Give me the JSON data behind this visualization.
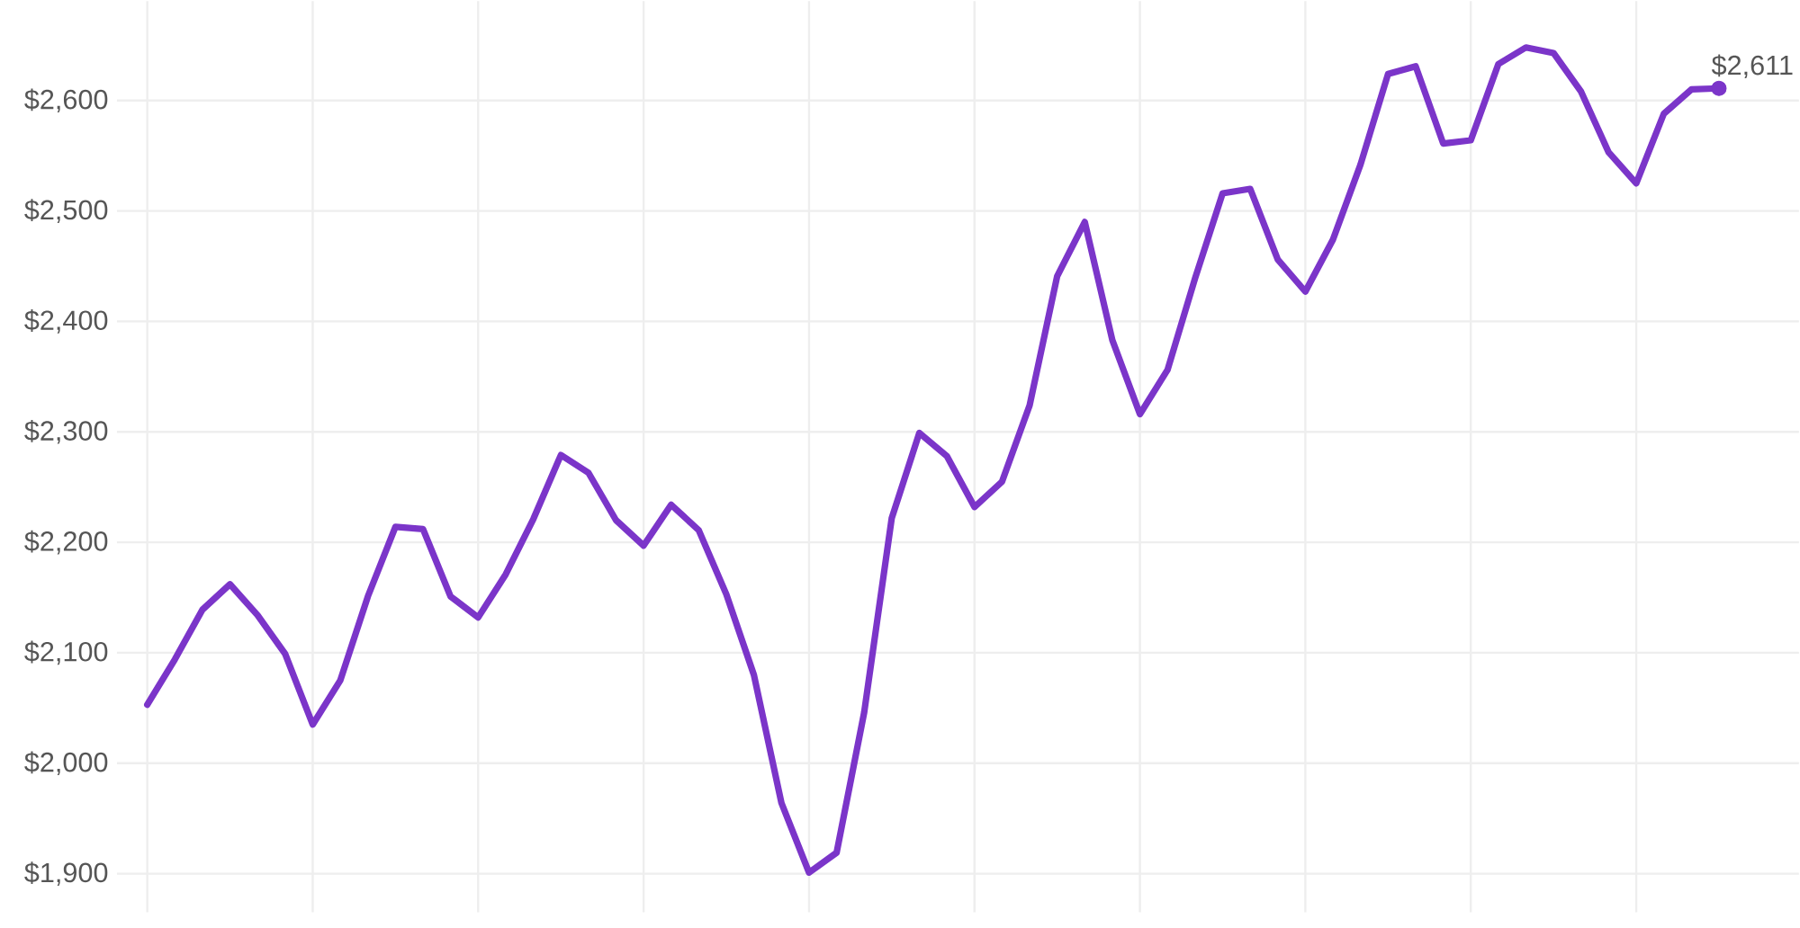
{
  "chart_data": {
    "type": "line",
    "categories": [
      null,
      null,
      null,
      null,
      null,
      null,
      null,
      null,
      null,
      null,
      null,
      null,
      null,
      null,
      null,
      null,
      null,
      null,
      null,
      null,
      null,
      null,
      null,
      null,
      null,
      null,
      null,
      null,
      null,
      null,
      null,
      null,
      null,
      null,
      null,
      null,
      null,
      null,
      null,
      null,
      null,
      null,
      null,
      null,
      null,
      null,
      null,
      null,
      null,
      null,
      null,
      null,
      null,
      null,
      null,
      null,
      null,
      null
    ],
    "series": [
      {
        "color": "#7b35c9",
        "values": [
          2053,
          2094,
          2139,
          2162,
          2134,
          2099,
          2035,
          2075,
          2151,
          2214,
          2212,
          2151,
          2132,
          2171,
          2221,
          2279,
          2263,
          2220,
          2197,
          2234,
          2211,
          2153,
          2080,
          1964,
          1901,
          1919,
          2046,
          2222,
          2299,
          2278,
          2232,
          2255,
          2324,
          2441,
          2490,
          2383,
          2316,
          2356,
          2439,
          2516,
          2520,
          2456,
          2427,
          2474,
          2542,
          2624,
          2631,
          2561,
          2564,
          2633,
          2648,
          2643,
          2608,
          2553,
          2525,
          2588,
          2610,
          2611
        ],
        "value_labels": [
          null,
          null,
          null,
          null,
          null,
          null,
          null,
          null,
          null,
          null,
          null,
          null,
          null,
          null,
          null,
          null,
          null,
          null,
          null,
          null,
          null,
          null,
          null,
          null,
          null,
          null,
          null,
          null,
          null,
          null,
          null,
          null,
          null,
          null,
          null,
          null,
          null,
          null,
          null,
          null,
          null,
          null,
          null,
          null,
          null,
          null,
          null,
          null,
          null,
          null,
          null,
          null,
          null,
          null,
          null,
          null,
          null,
          "$2,611"
        ]
      }
    ],
    "ylim": [
      1865,
      2690
    ],
    "yticks": [
      {
        "value": 1900,
        "label": "$1,900"
      },
      {
        "value": 2000,
        "label": "$2,000"
      },
      {
        "value": 2100,
        "label": "$2,100"
      },
      {
        "value": 2200,
        "label": "$2,200"
      },
      {
        "value": 2300,
        "label": "$2,300"
      },
      {
        "value": 2400,
        "label": "$2,400"
      },
      {
        "value": 2500,
        "label": "$2,500"
      },
      {
        "value": 2600,
        "label": "$2,600"
      }
    ],
    "grid": true,
    "tick_labels": "y"
  }
}
